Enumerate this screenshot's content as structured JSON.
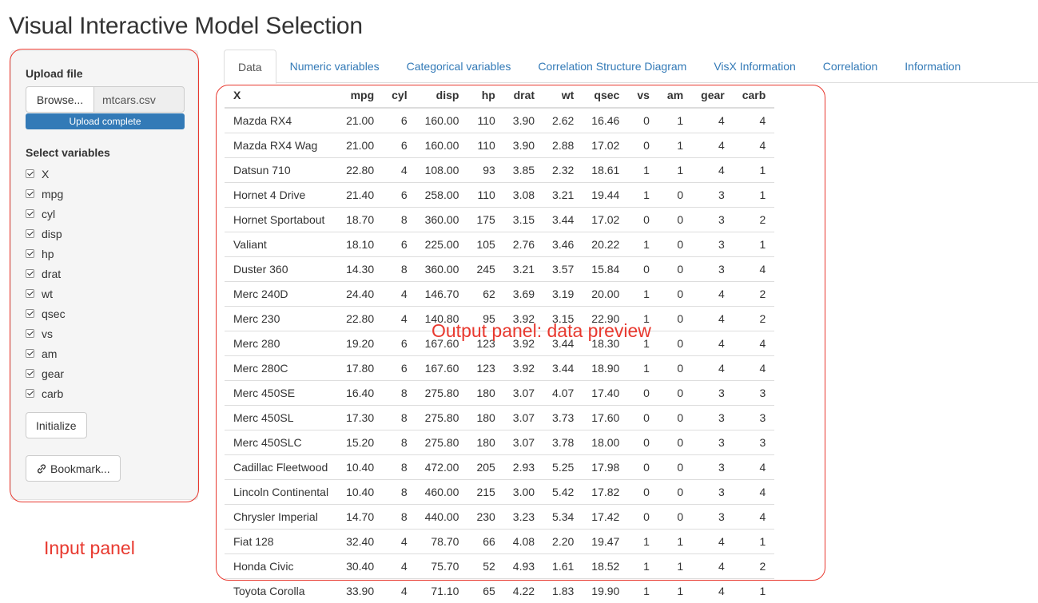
{
  "app": {
    "title": "Visual Interactive Model Selection"
  },
  "sidebar": {
    "upload_label": "Upload file",
    "browse_label": "Browse...",
    "file_name": "mtcars.csv",
    "upload_status": "Upload complete",
    "upload_progress": 1.0,
    "select_label": "Select variables",
    "variables": [
      {
        "name": "X",
        "checked": true
      },
      {
        "name": "mpg",
        "checked": true
      },
      {
        "name": "cyl",
        "checked": true
      },
      {
        "name": "disp",
        "checked": true
      },
      {
        "name": "hp",
        "checked": true
      },
      {
        "name": "drat",
        "checked": true
      },
      {
        "name": "wt",
        "checked": true
      },
      {
        "name": "qsec",
        "checked": true
      },
      {
        "name": "vs",
        "checked": true
      },
      {
        "name": "am",
        "checked": true
      },
      {
        "name": "gear",
        "checked": true
      },
      {
        "name": "carb",
        "checked": true
      }
    ],
    "initialize_label": "Initialize",
    "bookmark_label": "Bookmark..."
  },
  "tabs": [
    {
      "label": "Data",
      "active": true
    },
    {
      "label": "Numeric variables",
      "active": false
    },
    {
      "label": "Categorical variables",
      "active": false
    },
    {
      "label": "Correlation Structure Diagram",
      "active": false
    },
    {
      "label": "VisX Information",
      "active": false
    },
    {
      "label": "Correlation",
      "active": false
    },
    {
      "label": "Information",
      "active": false
    }
  ],
  "table": {
    "columns": [
      "X",
      "mpg",
      "cyl",
      "disp",
      "hp",
      "drat",
      "wt",
      "qsec",
      "vs",
      "am",
      "gear",
      "carb"
    ],
    "rows": [
      [
        "Mazda RX4",
        "21.00",
        "6",
        "160.00",
        "110",
        "3.90",
        "2.62",
        "16.46",
        "0",
        "1",
        "4",
        "4"
      ],
      [
        "Mazda RX4 Wag",
        "21.00",
        "6",
        "160.00",
        "110",
        "3.90",
        "2.88",
        "17.02",
        "0",
        "1",
        "4",
        "4"
      ],
      [
        "Datsun 710",
        "22.80",
        "4",
        "108.00",
        "93",
        "3.85",
        "2.32",
        "18.61",
        "1",
        "1",
        "4",
        "1"
      ],
      [
        "Hornet 4 Drive",
        "21.40",
        "6",
        "258.00",
        "110",
        "3.08",
        "3.21",
        "19.44",
        "1",
        "0",
        "3",
        "1"
      ],
      [
        "Hornet Sportabout",
        "18.70",
        "8",
        "360.00",
        "175",
        "3.15",
        "3.44",
        "17.02",
        "0",
        "0",
        "3",
        "2"
      ],
      [
        "Valiant",
        "18.10",
        "6",
        "225.00",
        "105",
        "2.76",
        "3.46",
        "20.22",
        "1",
        "0",
        "3",
        "1"
      ],
      [
        "Duster 360",
        "14.30",
        "8",
        "360.00",
        "245",
        "3.21",
        "3.57",
        "15.84",
        "0",
        "0",
        "3",
        "4"
      ],
      [
        "Merc 240D",
        "24.40",
        "4",
        "146.70",
        "62",
        "3.69",
        "3.19",
        "20.00",
        "1",
        "0",
        "4",
        "2"
      ],
      [
        "Merc 230",
        "22.80",
        "4",
        "140.80",
        "95",
        "3.92",
        "3.15",
        "22.90",
        "1",
        "0",
        "4",
        "2"
      ],
      [
        "Merc 280",
        "19.20",
        "6",
        "167.60",
        "123",
        "3.92",
        "3.44",
        "18.30",
        "1",
        "0",
        "4",
        "4"
      ],
      [
        "Merc 280C",
        "17.80",
        "6",
        "167.60",
        "123",
        "3.92",
        "3.44",
        "18.90",
        "1",
        "0",
        "4",
        "4"
      ],
      [
        "Merc 450SE",
        "16.40",
        "8",
        "275.80",
        "180",
        "3.07",
        "4.07",
        "17.40",
        "0",
        "0",
        "3",
        "3"
      ],
      [
        "Merc 450SL",
        "17.30",
        "8",
        "275.80",
        "180",
        "3.07",
        "3.73",
        "17.60",
        "0",
        "0",
        "3",
        "3"
      ],
      [
        "Merc 450SLC",
        "15.20",
        "8",
        "275.80",
        "180",
        "3.07",
        "3.78",
        "18.00",
        "0",
        "0",
        "3",
        "3"
      ],
      [
        "Cadillac Fleetwood",
        "10.40",
        "8",
        "472.00",
        "205",
        "2.93",
        "5.25",
        "17.98",
        "0",
        "0",
        "3",
        "4"
      ],
      [
        "Lincoln Continental",
        "10.40",
        "8",
        "460.00",
        "215",
        "3.00",
        "5.42",
        "17.82",
        "0",
        "0",
        "3",
        "4"
      ],
      [
        "Chrysler Imperial",
        "14.70",
        "8",
        "440.00",
        "230",
        "3.23",
        "5.34",
        "17.42",
        "0",
        "0",
        "3",
        "4"
      ],
      [
        "Fiat 128",
        "32.40",
        "4",
        "78.70",
        "66",
        "4.08",
        "2.20",
        "19.47",
        "1",
        "1",
        "4",
        "1"
      ],
      [
        "Honda Civic",
        "30.40",
        "4",
        "75.70",
        "52",
        "4.93",
        "1.61",
        "18.52",
        "1",
        "1",
        "4",
        "2"
      ],
      [
        "Toyota Corolla",
        "33.90",
        "4",
        "71.10",
        "65",
        "4.22",
        "1.83",
        "19.90",
        "1",
        "1",
        "4",
        "1"
      ]
    ]
  },
  "annotations": {
    "input_panel": "Input panel",
    "output_panel": "Output panel: data preview",
    "color": "#e8392f"
  },
  "colors": {
    "accent": "#337ab7"
  }
}
